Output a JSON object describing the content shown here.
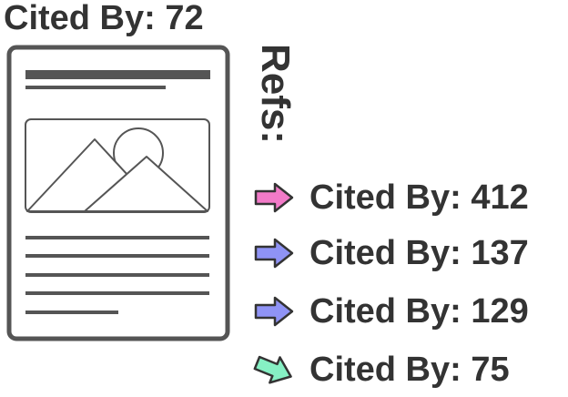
{
  "paper": {
    "citation_label": "Cited By: 72"
  },
  "refs": {
    "heading": "Refs:",
    "items": [
      {
        "label": "Cited By: 412",
        "arrow_color": "#f27ac8",
        "arrow_icon": "right-arrow-icon"
      },
      {
        "label": "Cited By: 137",
        "arrow_color": "#8f93f5",
        "arrow_icon": "right-arrow-icon"
      },
      {
        "label": "Cited By: 129",
        "arrow_color": "#8f93f5",
        "arrow_icon": "right-arrow-icon"
      },
      {
        "label": "Cited By: 75",
        "arrow_color": "#86f0c4",
        "arrow_icon": "down-right-arrow-icon"
      }
    ]
  },
  "colors": {
    "text": "#333333",
    "document_stroke": "#555555"
  }
}
